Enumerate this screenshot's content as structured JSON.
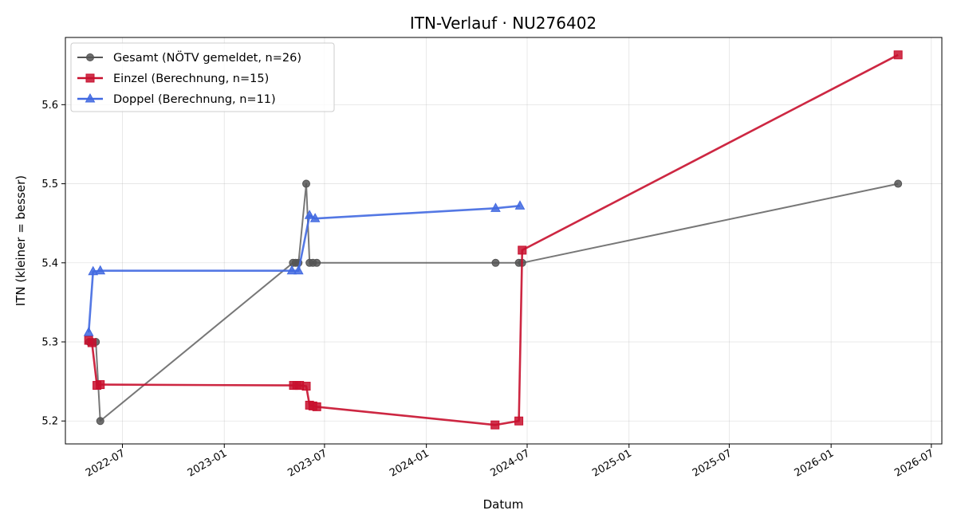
{
  "chart_data": {
    "type": "line",
    "title": "ITN-Verlauf · NU276402",
    "xlabel": "Datum",
    "ylabel": "ITN  (kleiner = besser)",
    "xlim": [
      "2022-03-20",
      "2026-07-20"
    ],
    "ylim": [
      5.171,
      5.685
    ],
    "x_ticks": [
      "2022-07",
      "2023-01",
      "2023-07",
      "2024-01",
      "2024-07",
      "2025-01",
      "2025-07",
      "2026-01",
      "2026-07"
    ],
    "y_ticks": [
      "5.2",
      "5.3",
      "5.4",
      "5.5",
      "5.6"
    ],
    "grid": true,
    "legend_position": "top-left",
    "series": [
      {
        "name": "Gesamt (NÖTV gemeldet, n=26)",
        "color": "#555555",
        "marker": "circle",
        "points": [
          {
            "x": "2022-05-02",
            "y": 5.3
          },
          {
            "x": "2022-05-08",
            "y": 5.3
          },
          {
            "x": "2022-05-14",
            "y": 5.3
          },
          {
            "x": "2022-05-22",
            "y": 5.2
          },
          {
            "x": "2023-05-05",
            "y": 5.4
          },
          {
            "x": "2023-05-10",
            "y": 5.4
          },
          {
            "x": "2023-05-15",
            "y": 5.4
          },
          {
            "x": "2023-05-29",
            "y": 5.5
          },
          {
            "x": "2023-06-04",
            "y": 5.4
          },
          {
            "x": "2023-06-10",
            "y": 5.4
          },
          {
            "x": "2023-06-17",
            "y": 5.4
          },
          {
            "x": "2024-05-05",
            "y": 5.4
          },
          {
            "x": "2024-06-16",
            "y": 5.4
          },
          {
            "x": "2024-06-22",
            "y": 5.4
          },
          {
            "x": "2026-05-02",
            "y": 5.5
          }
        ]
      },
      {
        "name": "Einzel (Berechnung, n=15)",
        "color": "#c8102e",
        "marker": "square",
        "points": [
          {
            "x": "2022-05-01",
            "y": 5.302
          },
          {
            "x": "2022-05-07",
            "y": 5.299
          },
          {
            "x": "2022-05-16",
            "y": 5.245
          },
          {
            "x": "2022-05-22",
            "y": 5.246
          },
          {
            "x": "2023-05-06",
            "y": 5.245
          },
          {
            "x": "2023-05-12",
            "y": 5.245
          },
          {
            "x": "2023-05-17",
            "y": 5.245
          },
          {
            "x": "2023-05-29",
            "y": 5.244
          },
          {
            "x": "2023-06-04",
            "y": 5.22
          },
          {
            "x": "2023-06-10",
            "y": 5.219
          },
          {
            "x": "2023-06-17",
            "y": 5.218
          },
          {
            "x": "2024-05-04",
            "y": 5.195
          },
          {
            "x": "2024-06-16",
            "y": 5.2
          },
          {
            "x": "2024-06-22",
            "y": 5.416
          },
          {
            "x": "2026-05-02",
            "y": 5.663
          }
        ]
      },
      {
        "name": "Doppel (Berechnung, n=11)",
        "color": "#4169e1",
        "marker": "triangle",
        "points": [
          {
            "x": "2022-05-01",
            "y": 5.312
          },
          {
            "x": "2022-05-09",
            "y": 5.389
          },
          {
            "x": "2022-05-22",
            "y": 5.39
          },
          {
            "x": "2023-05-03",
            "y": 5.39
          },
          {
            "x": "2023-05-15",
            "y": 5.39
          },
          {
            "x": "2023-06-04",
            "y": 5.46
          },
          {
            "x": "2023-06-14",
            "y": 5.456
          },
          {
            "x": "2024-05-05",
            "y": 5.469
          },
          {
            "x": "2024-06-18",
            "y": 5.472
          }
        ]
      }
    ]
  }
}
